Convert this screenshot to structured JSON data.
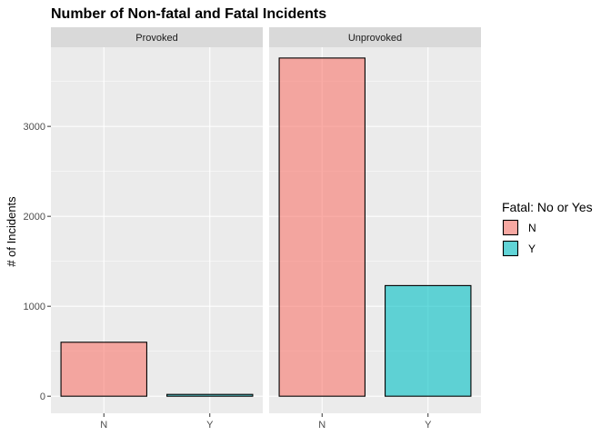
{
  "chart_data": {
    "type": "bar",
    "title": "Number of Non-fatal and Fatal Incidents",
    "ylabel": "# of Incidents",
    "xlabel": "",
    "ylim": [
      -190,
      3880
    ],
    "yticks": [
      0,
      1000,
      2000,
      3000
    ],
    "ytick_labels": [
      "0",
      "1000",
      "2000",
      "3000"
    ],
    "categories": [
      "N",
      "Y"
    ],
    "grid": true,
    "legend": {
      "title": "Fatal: No or Yes",
      "placement": "right",
      "entries": [
        {
          "label": "N",
          "color": "#F8766D"
        },
        {
          "label": "Y",
          "color": "#00BFC4"
        }
      ]
    },
    "facets": [
      {
        "name": "Provoked",
        "values": [
          600,
          20
        ]
      },
      {
        "name": "Unprovoked",
        "values": [
          3760,
          1230
        ]
      }
    ],
    "colors": {
      "panel": "#EBEBEB",
      "strip": "#D9D9D9",
      "grid_major": "#FFFFFF",
      "bar_outline": "#000000",
      "bar_opacity": 0.6
    }
  }
}
